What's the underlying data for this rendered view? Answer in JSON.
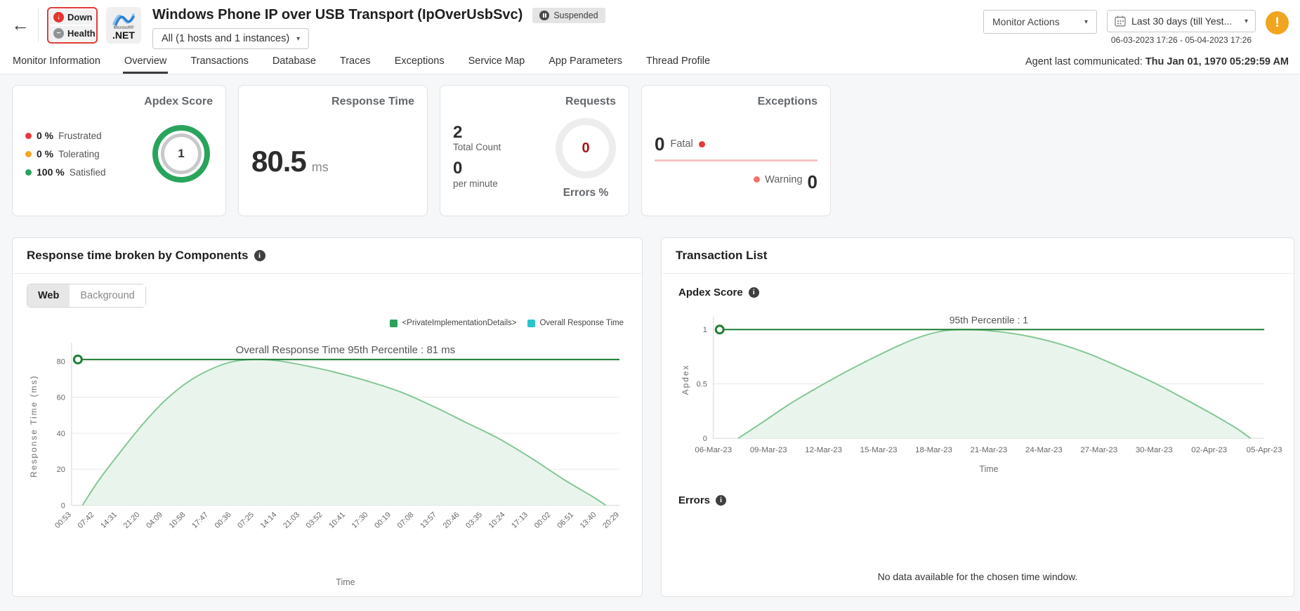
{
  "header": {
    "back_arrow": "←",
    "status_badge": {
      "down_label": "Down",
      "health_label": "Health"
    },
    "logo": {
      "brand": "Microsoft®",
      "product": ".NET"
    },
    "title": "Windows Phone IP over USB Transport (IpOverUsbSvc)",
    "suspended_label": "Suspended",
    "hosts_dropdown_value": "All (1 hosts and 1 instances)",
    "monitor_actions_label": "Monitor Actions",
    "date_range_label": "Last 30 days (till Yest...",
    "date_range_detail": "06-03-2023 17:26 - 05-04-2023 17:26",
    "warning_icon_glyph": "!",
    "caret_glyph": "▾"
  },
  "tabs": {
    "items": [
      {
        "label": "Monitor Information",
        "active": false
      },
      {
        "label": "Overview",
        "active": true
      },
      {
        "label": "Transactions",
        "active": false
      },
      {
        "label": "Database",
        "active": false
      },
      {
        "label": "Traces",
        "active": false
      },
      {
        "label": "Exceptions",
        "active": false
      },
      {
        "label": "Service Map",
        "active": false
      },
      {
        "label": "App Parameters",
        "active": false
      },
      {
        "label": "Thread Profile",
        "active": false
      }
    ],
    "agent_label": "Agent last communicated:",
    "agent_value": "Thu Jan 01, 1970 05:29:59 AM"
  },
  "cards": {
    "apdex": {
      "title": "Apdex Score",
      "rows": [
        {
          "value": "0 %",
          "label": "Frustrated",
          "color": "#e8373d"
        },
        {
          "value": "0 %",
          "label": "Tolerating",
          "color": "#f5a623"
        },
        {
          "value": "100 %",
          "label": "Satisfied",
          "color": "#2aa45c"
        }
      ],
      "score": "1",
      "ring_color": "#2aa45c"
    },
    "response_time": {
      "title": "Response Time",
      "value": "80.5",
      "unit": "ms"
    },
    "requests": {
      "title": "Requests",
      "total_count": "2",
      "total_count_label": "Total Count",
      "per_minute": "0",
      "per_minute_label": "per minute",
      "errors_value": "0",
      "errors_label": "Errors %",
      "errors_color": "#a01616"
    },
    "exceptions": {
      "title": "Exceptions",
      "fatal_value": "0",
      "fatal_label": "Fatal",
      "fatal_dot_color": "#e8373d",
      "warning_label": "Warning",
      "warning_value": "0",
      "warning_dot_color": "#f2726f",
      "underline_color": "#f7c2c2"
    }
  },
  "panels": {
    "left": {
      "title": "Response time broken by Components",
      "toggle": {
        "web_label": "Web",
        "background_label": "Background",
        "active": "Web"
      }
    },
    "right": {
      "title": "Transaction List",
      "apdex_title": "Apdex Score",
      "errors_title": "Errors",
      "no_data_message": "No data available for the chosen time window."
    }
  },
  "chart_data": [
    {
      "type": "area",
      "title": "Response time broken by Components",
      "series": [
        {
          "name": "<PrivateImplementationDetails>",
          "color": "#2aa05a"
        },
        {
          "name": "Overall Response Time",
          "color": "#2bc4cc"
        }
      ],
      "legend_position": "top-right",
      "xlabel": "Time",
      "ylabel": "Response Time (ms)",
      "ylim": [
        0,
        88
      ],
      "yticks": [
        0,
        20,
        40,
        60,
        80
      ],
      "grid": true,
      "xticklabels": [
        "00:53",
        "07:42",
        "14:31",
        "21:20",
        "04:09",
        "10:58",
        "17:47",
        "00:36",
        "07:25",
        "14:14",
        "21:03",
        "03:52",
        "10:41",
        "17:30",
        "00:19",
        "07:08",
        "13:57",
        "20:46",
        "03:35",
        "10:24",
        "17:13",
        "00:02",
        "06:51",
        "13:40",
        "20:29"
      ],
      "annotation": {
        "label": "Overall Response Time 95th Percentile : 81 ms",
        "value": 81
      },
      "points": [
        [
          0.02,
          0
        ],
        [
          0.05,
          14
        ],
        [
          0.09,
          30
        ],
        [
          0.13,
          45
        ],
        [
          0.17,
          58
        ],
        [
          0.21,
          68
        ],
        [
          0.25,
          75
        ],
        [
          0.29,
          79.5
        ],
        [
          0.33,
          81
        ],
        [
          0.37,
          80.5
        ],
        [
          0.42,
          78
        ],
        [
          0.48,
          74
        ],
        [
          0.54,
          69
        ],
        [
          0.6,
          63
        ],
        [
          0.66,
          55
        ],
        [
          0.72,
          46
        ],
        [
          0.78,
          37
        ],
        [
          0.84,
          26
        ],
        [
          0.9,
          14
        ],
        [
          0.95,
          5
        ],
        [
          0.975,
          0
        ]
      ],
      "colors": {
        "curve": "#85c796",
        "fill": "#e9f5ec",
        "pline": "#1e7d33",
        "grid": "#e9e9e9",
        "axis": "#d5d5d5",
        "tick_text": "#666666",
        "annotation_text": "#555555"
      }
    },
    {
      "type": "area",
      "title": "Apdex Score",
      "xlabel": "Time",
      "ylabel": "Apdex",
      "ylim": [
        0,
        1.08
      ],
      "yticks": [
        0,
        0.5,
        1
      ],
      "grid": true,
      "xticklabels": [
        "06-Mar-23",
        "09-Mar-23",
        "12-Mar-23",
        "15-Mar-23",
        "18-Mar-23",
        "21-Mar-23",
        "24-Mar-23",
        "27-Mar-23",
        "30-Mar-23",
        "02-Apr-23",
        "05-Apr-23"
      ],
      "annotation": {
        "label": "95th Percentile : 1",
        "value": 1
      },
      "points": [
        [
          0.045,
          0
        ],
        [
          0.09,
          0.15
        ],
        [
          0.14,
          0.32
        ],
        [
          0.19,
          0.47
        ],
        [
          0.24,
          0.61
        ],
        [
          0.29,
          0.74
        ],
        [
          0.34,
          0.86
        ],
        [
          0.38,
          0.94
        ],
        [
          0.42,
          0.99
        ],
        [
          0.46,
          1.0
        ],
        [
          0.5,
          0.99
        ],
        [
          0.56,
          0.95
        ],
        [
          0.62,
          0.88
        ],
        [
          0.68,
          0.78
        ],
        [
          0.74,
          0.65
        ],
        [
          0.8,
          0.51
        ],
        [
          0.86,
          0.35
        ],
        [
          0.91,
          0.21
        ],
        [
          0.95,
          0.09
        ],
        [
          0.975,
          0
        ]
      ],
      "colors": {
        "curve": "#85c796",
        "fill": "#e9f5ec",
        "pline": "#1e7d33",
        "grid": "#e9e9e9",
        "axis": "#d5d5d5",
        "tick_text": "#666666",
        "annotation_text": "#555555"
      }
    }
  ]
}
